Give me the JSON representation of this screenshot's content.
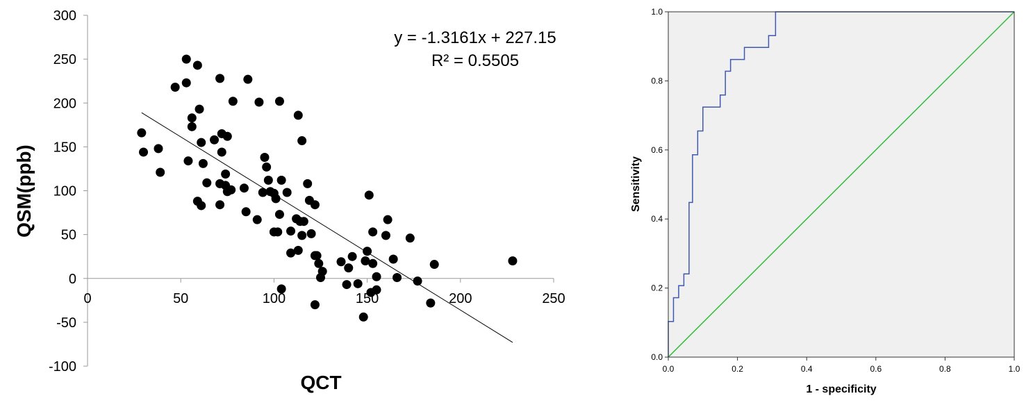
{
  "chart_data": [
    {
      "type": "scatter",
      "xlabel": "QCT",
      "ylabel": "QSM(ppb)",
      "xlim": [
        0,
        250
      ],
      "ylim": [
        -100,
        300
      ],
      "xticks": [
        "0",
        "50",
        "100",
        "150",
        "200",
        "250"
      ],
      "yticks": [
        "-100",
        "-50",
        "0",
        "50",
        "100",
        "150",
        "200",
        "250",
        "300"
      ],
      "grid": false,
      "equation": "y = -1.3161x + 227.15",
      "r_squared": "R² = 0.5505",
      "trendline": {
        "slope": -1.3161,
        "intercept": 227.15,
        "x_range": [
          29,
          228
        ]
      },
      "colors": {
        "points": "#000000",
        "trendline": "#000000",
        "axis": "#999999"
      },
      "points": [
        [
          29,
          166
        ],
        [
          30,
          144
        ],
        [
          38,
          148
        ],
        [
          39,
          121
        ],
        [
          47,
          218
        ],
        [
          53,
          223
        ],
        [
          53,
          250
        ],
        [
          54,
          134
        ],
        [
          56,
          183
        ],
        [
          56,
          173
        ],
        [
          59,
          243
        ],
        [
          59,
          88
        ],
        [
          60,
          193
        ],
        [
          61,
          155
        ],
        [
          61,
          83
        ],
        [
          62,
          131
        ],
        [
          64,
          109
        ],
        [
          68,
          158
        ],
        [
          71,
          228
        ],
        [
          71,
          108
        ],
        [
          71,
          84
        ],
        [
          72,
          165
        ],
        [
          72,
          144
        ],
        [
          74,
          119
        ],
        [
          74,
          106
        ],
        [
          75,
          162
        ],
        [
          75,
          99
        ],
        [
          77,
          101
        ],
        [
          78,
          202
        ],
        [
          84,
          103
        ],
        [
          85,
          76
        ],
        [
          86,
          227
        ],
        [
          91,
          67
        ],
        [
          92,
          201
        ],
        [
          94,
          98
        ],
        [
          95,
          138
        ],
        [
          96,
          127
        ],
        [
          97,
          112
        ],
        [
          98,
          99
        ],
        [
          100,
          97
        ],
        [
          100,
          53
        ],
        [
          101,
          91
        ],
        [
          102,
          53
        ],
        [
          103,
          73
        ],
        [
          103,
          202
        ],
        [
          104,
          112
        ],
        [
          104,
          -12
        ],
        [
          107,
          98
        ],
        [
          109,
          54
        ],
        [
          109,
          29
        ],
        [
          112,
          68
        ],
        [
          113,
          186
        ],
        [
          113,
          32
        ],
        [
          114,
          65
        ],
        [
          115,
          49
        ],
        [
          115,
          157
        ],
        [
          116,
          65
        ],
        [
          118,
          108
        ],
        [
          119,
          89
        ],
        [
          120,
          51
        ],
        [
          122,
          84
        ],
        [
          122,
          26
        ],
        [
          122,
          -30
        ],
        [
          123,
          26
        ],
        [
          124,
          17
        ],
        [
          125,
          1
        ],
        [
          126,
          8
        ],
        [
          136,
          19
        ],
        [
          139,
          -7
        ],
        [
          140,
          12
        ],
        [
          142,
          25
        ],
        [
          145,
          -6
        ],
        [
          148,
          -44
        ],
        [
          149,
          20
        ],
        [
          150,
          31
        ],
        [
          151,
          95
        ],
        [
          152,
          -16
        ],
        [
          153,
          17
        ],
        [
          153,
          53
        ],
        [
          155,
          -13
        ],
        [
          155,
          2
        ],
        [
          160,
          49
        ],
        [
          161,
          67
        ],
        [
          164,
          22
        ],
        [
          166,
          1
        ],
        [
          173,
          46
        ],
        [
          177,
          -3
        ],
        [
          184,
          -28
        ],
        [
          186,
          16
        ],
        [
          228,
          20
        ]
      ]
    },
    {
      "type": "line",
      "xlabel": "1 - specificity",
      "ylabel": "Sensitivity",
      "xlim": [
        0,
        1
      ],
      "ylim": [
        0,
        1
      ],
      "xticks": [
        "0.0",
        "0.2",
        "0.4",
        "0.6",
        "0.8",
        "1.0"
      ],
      "yticks": [
        "0.0",
        "0.2",
        "0.4",
        "0.6",
        "0.8",
        "1.0"
      ],
      "grid": false,
      "colors": {
        "roc": "#3f58b0",
        "reference": "#2ebd3a",
        "background": "#f0f0f0",
        "frame": "#333333"
      },
      "series": [
        {
          "x": [
            0,
            0,
            0.015,
            0.015,
            0.03,
            0.03,
            0.045,
            0.045,
            0.06,
            0.06,
            0.07,
            0.07,
            0.085,
            0.085,
            0.1,
            0.1,
            0.115,
            0.115,
            0.15,
            0.15,
            0.165,
            0.165,
            0.18,
            0.18,
            0.195,
            0.195,
            0.22,
            0.22,
            0.29,
            0.29,
            0.31,
            0.31,
            1.0
          ],
          "y": [
            0,
            0.103,
            0.103,
            0.172,
            0.172,
            0.207,
            0.207,
            0.241,
            0.241,
            0.448,
            0.448,
            0.586,
            0.586,
            0.655,
            0.655,
            0.724,
            0.724,
            0.724,
            0.724,
            0.759,
            0.759,
            0.828,
            0.828,
            0.862,
            0.862,
            0.862,
            0.862,
            0.897,
            0.897,
            0.931,
            0.931,
            1.0,
            1.0
          ]
        },
        {
          "x": [
            0,
            1
          ],
          "y": [
            0,
            1
          ]
        }
      ]
    }
  ]
}
